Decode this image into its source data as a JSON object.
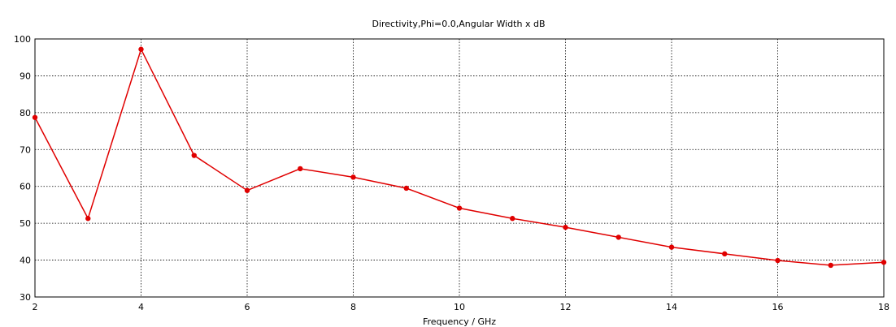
{
  "chart_data": {
    "type": "line",
    "title": "Directivity,Phi=0.0,Angular Width x dB",
    "xlabel": "Frequency / GHz",
    "ylabel": "",
    "xlim": [
      2,
      18
    ],
    "ylim": [
      30,
      100
    ],
    "xticks": [
      2,
      4,
      6,
      8,
      10,
      12,
      14,
      16,
      18
    ],
    "yticks": [
      30,
      40,
      50,
      60,
      70,
      80,
      90,
      100
    ],
    "x_tick_labels": [
      "2",
      "4",
      "6",
      "8",
      "10",
      "12",
      "14",
      "16",
      "18"
    ],
    "y_tick_labels": [
      "30",
      "40",
      "50",
      "60",
      "70",
      "80",
      "90",
      "100"
    ],
    "grid": true,
    "legend": "none",
    "series": [
      {
        "color": "#e00000",
        "x": [
          2,
          3,
          4,
          5,
          6,
          7,
          8,
          9,
          10,
          11,
          12,
          13,
          14,
          15,
          16,
          17,
          18
        ],
        "y": [
          78.7,
          51.3,
          97.2,
          68.4,
          58.9,
          64.8,
          62.5,
          59.5,
          54.1,
          51.3,
          48.9,
          46.2,
          43.5,
          41.7,
          39.9,
          38.6,
          39.4
        ]
      }
    ]
  }
}
